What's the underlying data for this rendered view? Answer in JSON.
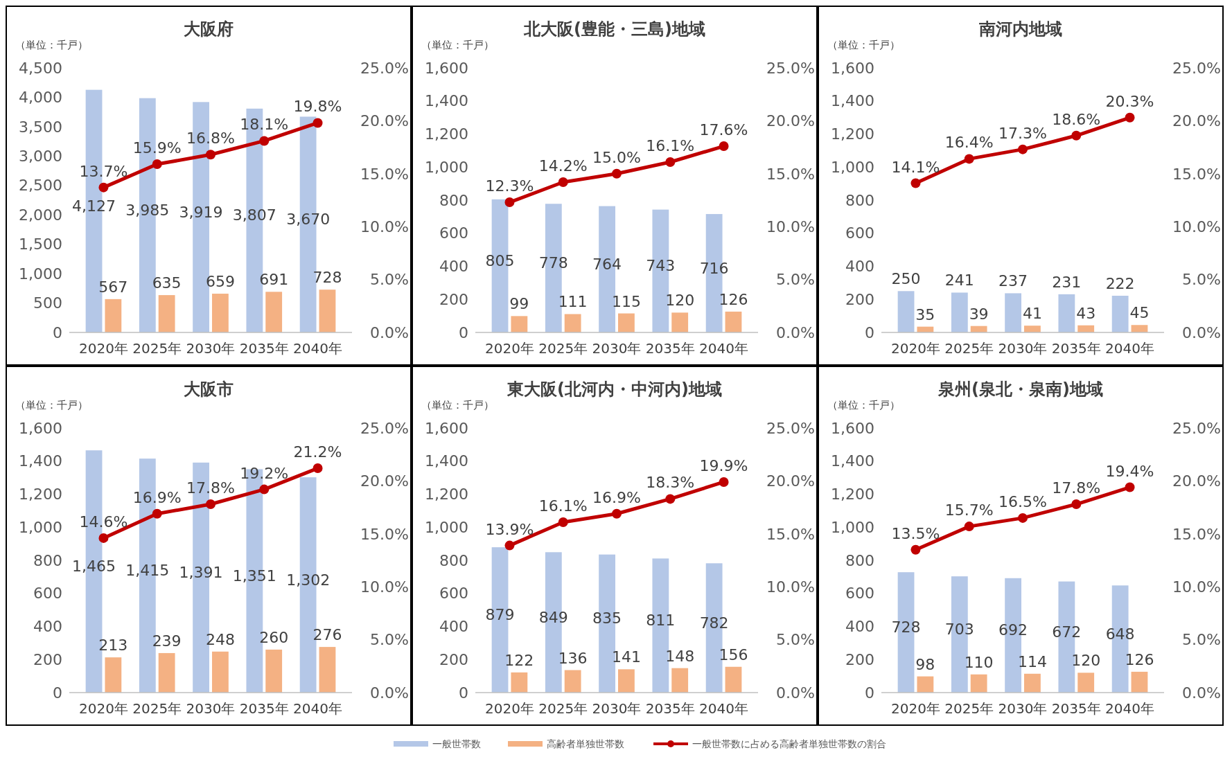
{
  "chart_data": [
    {
      "type": "bar",
      "title": "大阪府",
      "annotations": [
        "（単位：千戸）"
      ],
      "categories": [
        "2020年",
        "2025年",
        "2030年",
        "2035年",
        "2040年"
      ],
      "legend": "bottom",
      "marker": "circle",
      "ylim": [
        0,
        4500
      ],
      "yticks": [
        0,
        500,
        {
          "value": 1000,
          "label": "1,000"
        },
        {
          "value": 1500,
          "label": "1,500"
        },
        {
          "value": 2000,
          "label": "2,000"
        },
        {
          "value": 2500,
          "label": "2,500"
        },
        {
          "value": 3000,
          "label": "3,000"
        },
        {
          "value": 3500,
          "label": "3,500"
        },
        {
          "value": 4000,
          "label": "4,000"
        },
        {
          "value": 4500,
          "label": "4,500"
        }
      ],
      "y2lim": [
        0,
        25
      ],
      "y2ticks": [
        {
          "value": 0,
          "label": "0.0%"
        },
        {
          "value": 5,
          "label": "5.0%"
        },
        {
          "value": 10,
          "label": "10.0%"
        },
        {
          "value": 15,
          "label": "15.0%"
        },
        {
          "value": 20,
          "label": "20.0%"
        },
        {
          "value": 25,
          "label": "25.0%"
        }
      ],
      "series": [
        {
          "name": "一般世帯数",
          "color": "#b4c7e7",
          "values": [
            4127,
            3985,
            3919,
            3807,
            3670
          ],
          "value_labels": [
            "4,127",
            "3,985",
            "3,919",
            "3,807",
            "3,670"
          ]
        },
        {
          "name": "高齢者単独世帯数",
          "color": "#f4b183",
          "values": [
            567,
            635,
            659,
            691,
            728
          ],
          "value_labels": [
            "567",
            "635",
            "659",
            "691",
            "728"
          ]
        },
        {
          "name": "一般世帯数に占める高齢者単独世帯数の割合",
          "type": "line",
          "axis": "y2",
          "color": "#c00000",
          "values": [
            13.7,
            15.9,
            16.8,
            18.1,
            19.8
          ],
          "value_labels": [
            "13.7%",
            "15.9%",
            "16.8%",
            "18.1%",
            "19.8%"
          ]
        }
      ]
    },
    {
      "type": "bar",
      "title": "北大阪(豊能・三島)地域",
      "annotations": [
        "（単位：千戸）"
      ],
      "categories": [
        "2020年",
        "2025年",
        "2030年",
        "2035年",
        "2040年"
      ],
      "marker": "circle",
      "ylim": [
        0,
        1600
      ],
      "yticks": [
        0,
        200,
        400,
        600,
        800,
        {
          "value": 1000,
          "label": "1,000"
        },
        {
          "value": 1200,
          "label": "1,200"
        },
        {
          "value": 1400,
          "label": "1,400"
        },
        {
          "value": 1600,
          "label": "1,600"
        }
      ],
      "y2lim": [
        0,
        25
      ],
      "y2ticks": [
        {
          "value": 0,
          "label": "0.0%"
        },
        {
          "value": 5,
          "label": "5.0%"
        },
        {
          "value": 10,
          "label": "10.0%"
        },
        {
          "value": 15,
          "label": "15.0%"
        },
        {
          "value": 20,
          "label": "20.0%"
        },
        {
          "value": 25,
          "label": "25.0%"
        }
      ],
      "series": [
        {
          "color": "#b4c7e7",
          "values": [
            805,
            778,
            764,
            743,
            716
          ],
          "value_labels": [
            "805",
            "778",
            "764",
            "743",
            "716"
          ]
        },
        {
          "color": "#f4b183",
          "values": [
            99,
            111,
            115,
            120,
            126
          ],
          "value_labels": [
            "99",
            "111",
            "115",
            "120",
            "126"
          ]
        },
        {
          "type": "line",
          "axis": "y2",
          "color": "#c00000",
          "values": [
            12.3,
            14.2,
            15.0,
            16.1,
            17.6
          ],
          "value_labels": [
            "12.3%",
            "14.2%",
            "15.0%",
            "16.1%",
            "17.6%"
          ]
        }
      ]
    },
    {
      "type": "bar",
      "title": "南河内地域",
      "annotations": [
        "（単位：千戸）"
      ],
      "categories": [
        "2020年",
        "2025年",
        "2030年",
        "2035年",
        "2040年"
      ],
      "marker": "circle",
      "ylim": [
        0,
        1600
      ],
      "yticks": [
        0,
        200,
        400,
        600,
        800,
        {
          "value": 1000,
          "label": "1,000"
        },
        {
          "value": 1200,
          "label": "1,200"
        },
        {
          "value": 1400,
          "label": "1,400"
        },
        {
          "value": 1600,
          "label": "1,600"
        }
      ],
      "y2lim": [
        0,
        25
      ],
      "y2ticks": [
        {
          "value": 0,
          "label": "0.0%"
        },
        {
          "value": 5,
          "label": "5.0%"
        },
        {
          "value": 10,
          "label": "10.0%"
        },
        {
          "value": 15,
          "label": "15.0%"
        },
        {
          "value": 20,
          "label": "20.0%"
        },
        {
          "value": 25,
          "label": "25.0%"
        }
      ],
      "series": [
        {
          "color": "#b4c7e7",
          "values": [
            250,
            241,
            237,
            231,
            222
          ],
          "value_labels": [
            "250",
            "241",
            "237",
            "231",
            "222"
          ]
        },
        {
          "color": "#f4b183",
          "values": [
            35,
            39,
            41,
            43,
            45
          ],
          "value_labels": [
            "35",
            "39",
            "41",
            "43",
            "45"
          ]
        },
        {
          "type": "line",
          "axis": "y2",
          "color": "#c00000",
          "values": [
            14.1,
            16.4,
            17.3,
            18.6,
            20.3
          ],
          "value_labels": [
            "14.1%",
            "16.4%",
            "17.3%",
            "18.6%",
            "20.3%"
          ]
        }
      ]
    },
    {
      "type": "bar",
      "title": "大阪市",
      "annotations": [
        "（単位：千戸）"
      ],
      "categories": [
        "2020年",
        "2025年",
        "2030年",
        "2035年",
        "2040年"
      ],
      "marker": "circle",
      "ylim": [
        0,
        1600
      ],
      "yticks": [
        0,
        200,
        400,
        600,
        800,
        {
          "value": 1000,
          "label": "1,000"
        },
        {
          "value": 1200,
          "label": "1,200"
        },
        {
          "value": 1400,
          "label": "1,400"
        },
        {
          "value": 1600,
          "label": "1,600"
        }
      ],
      "y2lim": [
        0,
        25
      ],
      "y2ticks": [
        {
          "value": 0,
          "label": "0.0%"
        },
        {
          "value": 5,
          "label": "5.0%"
        },
        {
          "value": 10,
          "label": "10.0%"
        },
        {
          "value": 15,
          "label": "15.0%"
        },
        {
          "value": 20,
          "label": "20.0%"
        },
        {
          "value": 25,
          "label": "25.0%"
        }
      ],
      "series": [
        {
          "color": "#b4c7e7",
          "values": [
            1465,
            1415,
            1391,
            1351,
            1302
          ],
          "value_labels": [
            "1,465",
            "1,415",
            "1,391",
            "1,351",
            "1,302"
          ]
        },
        {
          "color": "#f4b183",
          "values": [
            213,
            239,
            248,
            260,
            276
          ],
          "value_labels": [
            "213",
            "239",
            "248",
            "260",
            "276"
          ]
        },
        {
          "type": "line",
          "axis": "y2",
          "color": "#c00000",
          "values": [
            14.6,
            16.9,
            17.8,
            19.2,
            21.2
          ],
          "value_labels": [
            "14.6%",
            "16.9%",
            "17.8%",
            "19.2%",
            "21.2%"
          ]
        }
      ]
    },
    {
      "type": "bar",
      "title": "東大阪(北河内・中河内)地域",
      "annotations": [
        "（単位：千戸）"
      ],
      "categories": [
        "2020年",
        "2025年",
        "2030年",
        "2035年",
        "2040年"
      ],
      "marker": "circle",
      "ylim": [
        0,
        1600
      ],
      "yticks": [
        0,
        200,
        400,
        600,
        800,
        {
          "value": 1000,
          "label": "1,000"
        },
        {
          "value": 1200,
          "label": "1,200"
        },
        {
          "value": 1400,
          "label": "1,400"
        },
        {
          "value": 1600,
          "label": "1,600"
        }
      ],
      "y2lim": [
        0,
        25
      ],
      "y2ticks": [
        {
          "value": 0,
          "label": "0.0%"
        },
        {
          "value": 5,
          "label": "5.0%"
        },
        {
          "value": 10,
          "label": "10.0%"
        },
        {
          "value": 15,
          "label": "15.0%"
        },
        {
          "value": 20,
          "label": "20.0%"
        },
        {
          "value": 25,
          "label": "25.0%"
        }
      ],
      "series": [
        {
          "color": "#b4c7e7",
          "values": [
            879,
            849,
            835,
            811,
            782
          ],
          "value_labels": [
            "879",
            "849",
            "835",
            "811",
            "782"
          ]
        },
        {
          "color": "#f4b183",
          "values": [
            122,
            136,
            141,
            148,
            156
          ],
          "value_labels": [
            "122",
            "136",
            "141",
            "148",
            "156"
          ]
        },
        {
          "type": "line",
          "axis": "y2",
          "color": "#c00000",
          "values": [
            13.9,
            16.1,
            16.9,
            18.3,
            19.9
          ],
          "value_labels": [
            "13.9%",
            "16.1%",
            "16.9%",
            "18.3%",
            "19.9%"
          ]
        }
      ]
    },
    {
      "type": "bar",
      "title": "泉州(泉北・泉南)地域",
      "annotations": [
        "（単位：千戸）"
      ],
      "categories": [
        "2020年",
        "2025年",
        "2030年",
        "2035年",
        "2040年"
      ],
      "marker": "circle",
      "ylim": [
        0,
        1600
      ],
      "yticks": [
        0,
        200,
        400,
        600,
        800,
        {
          "value": 1000,
          "label": "1,000"
        },
        {
          "value": 1200,
          "label": "1,200"
        },
        {
          "value": 1400,
          "label": "1,400"
        },
        {
          "value": 1600,
          "label": "1,600"
        }
      ],
      "y2lim": [
        0,
        25
      ],
      "y2ticks": [
        {
          "value": 0,
          "label": "0.0%"
        },
        {
          "value": 5,
          "label": "5.0%"
        },
        {
          "value": 10,
          "label": "10.0%"
        },
        {
          "value": 15,
          "label": "15.0%"
        },
        {
          "value": 20,
          "label": "20.0%"
        },
        {
          "value": 25,
          "label": "25.0%"
        }
      ],
      "series": [
        {
          "color": "#b4c7e7",
          "values": [
            728,
            703,
            692,
            672,
            648
          ],
          "value_labels": [
            "728",
            "703",
            "692",
            "672",
            "648"
          ]
        },
        {
          "color": "#f4b183",
          "values": [
            98,
            110,
            114,
            120,
            126
          ],
          "value_labels": [
            "98",
            "110",
            "114",
            "120",
            "126"
          ]
        },
        {
          "type": "line",
          "axis": "y2",
          "color": "#c00000",
          "values": [
            13.5,
            15.7,
            16.5,
            17.8,
            19.4
          ],
          "value_labels": [
            "13.5%",
            "15.7%",
            "16.5%",
            "17.8%",
            "19.4%"
          ]
        }
      ]
    }
  ]
}
